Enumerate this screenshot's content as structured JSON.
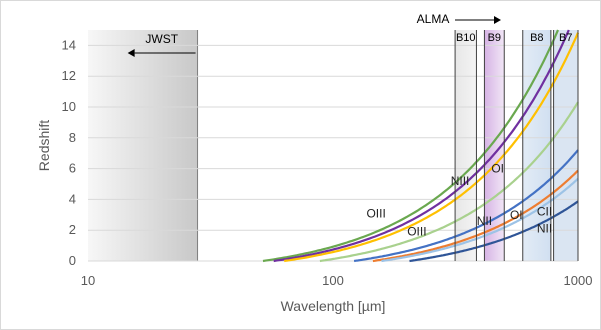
{
  "chart_data": {
    "type": "line",
    "xscale": "log",
    "xlabel": "Wavelength [µm]",
    "ylabel": "Redshift",
    "xlim": [
      10,
      1000
    ],
    "ylim": [
      0,
      15
    ],
    "xticks": [
      "10",
      "100",
      "1000"
    ],
    "yticks": [
      "0",
      "2",
      "4",
      "6",
      "8",
      "10",
      "12",
      "14"
    ],
    "grid": "horizontal",
    "legend": "none",
    "jwst": {
      "label": "JWST",
      "x_max": 28,
      "arrow": "left"
    },
    "alma": {
      "label": "ALMA",
      "arrow": "right"
    },
    "bands": [
      {
        "name": "B10",
        "x": [
          315,
          385
        ],
        "color": "#d0d0d0"
      },
      {
        "name": "B9",
        "x": [
          415,
          500
        ],
        "color": "#d8b4e8"
      },
      {
        "name": "B8",
        "x": [
          595,
          775
        ],
        "color": "#c3d5ec"
      },
      {
        "name": "B7",
        "x": [
          795,
          1000
        ],
        "color": "#c3d5ec"
      }
    ],
    "series": [
      {
        "rest_wavelength": 51.8,
        "color": "#6aa84f",
        "x": [
          51.8,
          100,
          300,
          500,
          803,
          1000
        ],
        "y": [
          0,
          0.93,
          4.79,
          8.65,
          14.5,
          18.3
        ]
      },
      {
        "rest_wavelength": 57.3,
        "color": "#7030a0",
        "x": [
          57.3,
          100,
          300,
          500,
          917,
          1000
        ],
        "y": [
          0,
          0.75,
          4.24,
          7.73,
          15.0,
          16.5
        ]
      },
      {
        "rest_wavelength": 63.2,
        "color": "#ffc000",
        "x": [
          63.2,
          100,
          300,
          500,
          1000
        ],
        "y": [
          0,
          0.58,
          3.75,
          6.91,
          14.8
        ]
      },
      {
        "rest_wavelength": 88.4,
        "color": "#a9d18e",
        "x": [
          88.4,
          100,
          300,
          500,
          1000
        ],
        "y": [
          0,
          0.13,
          2.39,
          4.66,
          10.3
        ]
      },
      {
        "rest_wavelength": 121.9,
        "color": "#4472c4",
        "x": [
          121.9,
          300,
          500,
          1000
        ],
        "y": [
          0,
          1.46,
          3.1,
          7.2
        ]
      },
      {
        "rest_wavelength": 145.5,
        "color": "#ed7d31",
        "x": [
          145.5,
          300,
          500,
          1000
        ],
        "y": [
          0,
          1.06,
          2.44,
          5.87
        ]
      },
      {
        "rest_wavelength": 157.7,
        "color": "#9dc3e6",
        "x": [
          157.7,
          300,
          500,
          1000
        ],
        "y": [
          0,
          0.9,
          2.17,
          5.34
        ]
      },
      {
        "rest_wavelength": 205.2,
        "color": "#2f5597",
        "x": [
          205.2,
          300,
          500,
          1000
        ],
        "y": [
          0,
          0.46,
          1.44,
          3.87
        ]
      }
    ],
    "annotations": [
      {
        "text": "NIII",
        "x": 330,
        "y": 5.2
      },
      {
        "text": "OI",
        "x": 470,
        "y": 6.0
      },
      {
        "text": "OIII",
        "x": 150,
        "y": 3.1
      },
      {
        "text": "OIII",
        "x": 220,
        "y": 1.9
      },
      {
        "text": "NII",
        "x": 415,
        "y": 2.6
      },
      {
        "text": "OI",
        "x": 560,
        "y": 3.0
      },
      {
        "text": "CII",
        "x": 730,
        "y": 3.2
      },
      {
        "text": "NII",
        "x": 730,
        "y": 2.1
      }
    ]
  }
}
